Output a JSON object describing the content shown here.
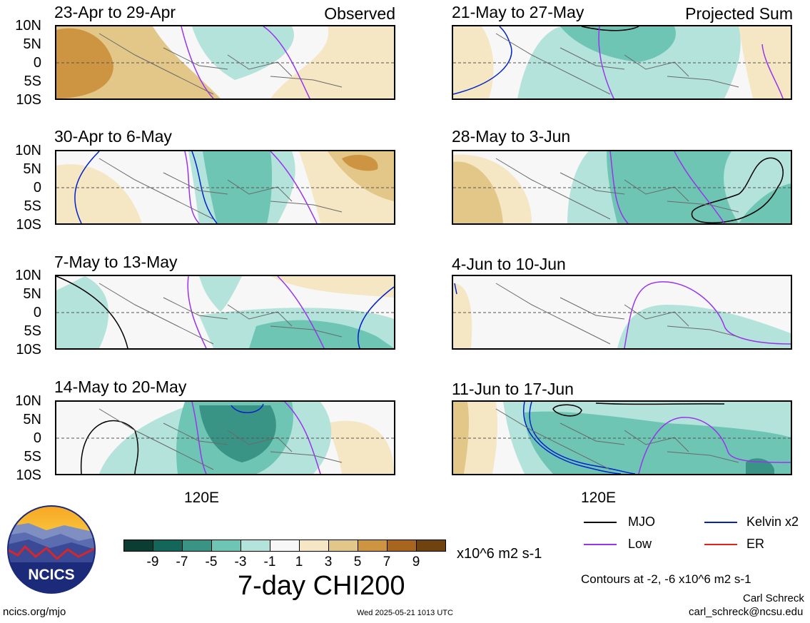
{
  "header": {
    "observed_label": "Observed",
    "projected_label": "Projected Sum"
  },
  "lat_labels": [
    "10N",
    "5N",
    "0",
    "5S",
    "10S"
  ],
  "x_label": "120E",
  "panels": [
    {
      "title": "23-Apr to 29-Apr"
    },
    {
      "title": "30-Apr to 6-May"
    },
    {
      "title": "7-May to 13-May"
    },
    {
      "title": "14-May to 20-May"
    },
    {
      "title": "21-May to 27-May"
    },
    {
      "title": "28-May to 3-Jun"
    },
    {
      "title": "4-Jun to 10-Jun"
    },
    {
      "title": "11-Jun to 17-Jun"
    }
  ],
  "colorbar": {
    "colors": [
      "#0b3d33",
      "#12665a",
      "#3a9485",
      "#6ec5b4",
      "#b4e3db",
      "#f7f7f7",
      "#f5e6c4",
      "#e2c788",
      "#cd9442",
      "#a8651e",
      "#6e4310"
    ],
    "ticks": [
      "-9",
      "-7",
      "-5",
      "-3",
      "-1",
      "1",
      "3",
      "5",
      "7",
      "9"
    ],
    "units": "x10^6 m2 s-1",
    "title": "7-day CHI200"
  },
  "legend": {
    "mjo": {
      "label": "MJO",
      "color": "#000000"
    },
    "kelvin": {
      "label": "Kelvin x2",
      "color": "#0022cc"
    },
    "low": {
      "label": "Low",
      "color": "#9933ee"
    },
    "er": {
      "label": "ER",
      "color": "#e0241b"
    },
    "contours_note": "Contours at -2, -6 x10^6 m2 s-1"
  },
  "logo": {
    "text": "NCICS"
  },
  "footer": {
    "url": "ncics.org/mjo",
    "timestamp": "Wed 2025-05-21 1013 UTC",
    "author": "Carl Schreck",
    "email": "carl_schreck@ncsu.edu"
  },
  "chart_data": {
    "type": "heatmap",
    "title": "7-day CHI200",
    "units": "x10^6 m2 s-1",
    "x_tick_labels": [
      "120E"
    ],
    "y_tick_labels": [
      "10N",
      "5N",
      "0",
      "5S",
      "10S"
    ],
    "ylim": [
      -10,
      10
    ],
    "color_levels": [
      -9,
      -7,
      -5,
      -3,
      -1,
      1,
      3,
      5,
      7,
      9
    ],
    "panels": [
      {
        "title": "23-Apr to 29-Apr",
        "kind": "Observed"
      },
      {
        "title": "30-Apr to 6-May",
        "kind": "Observed"
      },
      {
        "title": "7-May to 13-May",
        "kind": "Observed"
      },
      {
        "title": "14-May to 20-May",
        "kind": "Observed"
      },
      {
        "title": "21-May to 27-May",
        "kind": "Projected Sum"
      },
      {
        "title": "28-May to 3-Jun",
        "kind": "Projected Sum"
      },
      {
        "title": "4-Jun to 10-Jun",
        "kind": "Projected Sum"
      },
      {
        "title": "11-Jun to 17-Jun",
        "kind": "Projected Sum"
      }
    ],
    "contour_series": [
      "MJO",
      "Kelvin x2",
      "Low",
      "ER"
    ],
    "contour_levels": [
      -2,
      -6
    ]
  }
}
